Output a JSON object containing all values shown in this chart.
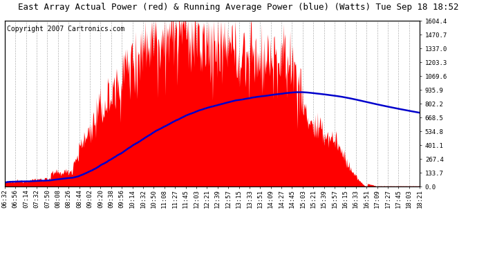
{
  "title": "East Array Actual Power (red) & Running Average Power (blue) (Watts) Tue Sep 18 18:52",
  "copyright": "Copyright 2007 Cartronics.com",
  "ylabel_right": [
    "0.0",
    "133.7",
    "267.4",
    "401.1",
    "534.8",
    "668.5",
    "802.2",
    "935.9",
    "1069.6",
    "1203.3",
    "1337.0",
    "1470.7",
    "1604.4"
  ],
  "ymax": 1604.4,
  "ymin": 0.0,
  "bg_color": "#ffffff",
  "plot_bg_color": "#ffffff",
  "grid_color": "#aaaaaa",
  "red_color": "#ff0000",
  "blue_color": "#0000cc",
  "title_fontsize": 9,
  "copyright_fontsize": 7,
  "tick_fontsize": 6.5,
  "x_tick_labels": [
    "06:32",
    "06:56",
    "07:14",
    "07:32",
    "07:50",
    "08:08",
    "08:26",
    "08:44",
    "09:02",
    "09:20",
    "09:38",
    "09:56",
    "10:14",
    "10:32",
    "10:50",
    "11:08",
    "11:27",
    "11:45",
    "12:03",
    "12:21",
    "12:39",
    "12:57",
    "13:15",
    "13:33",
    "13:51",
    "14:09",
    "14:27",
    "14:45",
    "15:03",
    "15:21",
    "15:39",
    "15:57",
    "16:15",
    "16:33",
    "16:51",
    "17:09",
    "17:27",
    "17:45",
    "18:03",
    "18:21"
  ]
}
